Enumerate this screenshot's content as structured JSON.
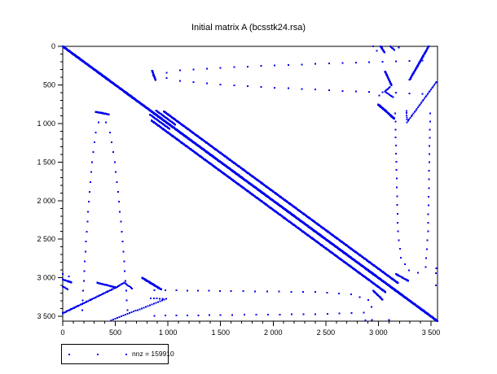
{
  "title": "Initial matrix A (bcsstk24.rsa)",
  "legend": {
    "label": "nnz = 159910"
  },
  "chart_data": {
    "type": "scatter",
    "subtype": "spy-sparsity-plot",
    "title": "Initial matrix A (bcsstk24.rsa)",
    "matrix": "bcsstk24.rsa",
    "n": 3562,
    "nnz": 159910,
    "axis_range": [
      0,
      3562
    ],
    "x_ticks": [
      0,
      500,
      1000,
      1500,
      2000,
      2500,
      3000,
      3500
    ],
    "x_tick_labels": [
      "0",
      "500",
      "1 000",
      "1 500",
      "2 000",
      "2 500",
      "3 000",
      "3 500"
    ],
    "y_ticks": [
      0,
      500,
      1000,
      1500,
      2000,
      2500,
      3000,
      3500
    ],
    "y_tick_labels": [
      "0",
      "500",
      "1 000",
      "1 500",
      "2 000",
      "2 500",
      "3 000",
      "3 500"
    ],
    "minor_tick_step": 100,
    "grid": false,
    "legend_position": "bottom-left-outside",
    "marker_color": "#0000ee",
    "axis_color": "#000000",
    "features": [
      {
        "name": "main-diagonal",
        "poly": [
          [
            0,
            0
          ],
          [
            3562,
            3562
          ]
        ],
        "step": 5,
        "size": 2.4,
        "mirror": false
      },
      {
        "name": "off-diagonal-band",
        "poly": [
          [
            962,
            844
          ],
          [
            3185,
            3067
          ]
        ],
        "step": 6,
        "size": 2.2,
        "mirror": true
      },
      {
        "name": "band-fan-inner",
        "poly": [
          [
            885,
            830
          ],
          [
            1070,
            1015
          ]
        ],
        "step": 6,
        "size": 2,
        "mirror": true
      },
      {
        "name": "arc-upper-branch",
        "poly": [
          [
            372,
            858
          ],
          [
            313,
            1115
          ],
          [
            279,
            1500
          ],
          [
            247,
            2015
          ],
          [
            216,
            2660
          ],
          [
            185,
            3420
          ]
        ],
        "step": 118,
        "size": 2,
        "mirror": true
      },
      {
        "name": "arc-lower-branch",
        "poly": [
          [
            372,
            858
          ],
          [
            449,
            1115
          ],
          [
            494,
            1500
          ],
          [
            535,
            2015
          ],
          [
            577,
            2660
          ],
          [
            616,
            3420
          ]
        ],
        "step": 118,
        "size": 2,
        "mirror": true
      },
      {
        "name": "arc-vertex-streak",
        "poly": [
          [
            315,
            850
          ],
          [
            438,
            882
          ]
        ],
        "step": 7,
        "size": 2.2,
        "mirror": true
      },
      {
        "name": "right-loop",
        "poly": [
          [
            870,
            3160
          ],
          [
            1600,
            3172
          ],
          [
            2400,
            3185
          ],
          [
            2740,
            3215
          ],
          [
            2905,
            3290
          ],
          [
            2935,
            3375
          ],
          [
            2860,
            3450
          ],
          [
            2400,
            3472
          ],
          [
            1500,
            3483
          ],
          [
            870,
            3492
          ]
        ],
        "step": 112,
        "size": 2,
        "mirror": true
      },
      {
        "name": "junction-streak",
        "poly": [
          [
            3000,
            755
          ],
          [
            3150,
            935
          ]
        ],
        "step": 7,
        "size": 2.4,
        "mirror": true
      },
      {
        "name": "corner-line-bl",
        "poly": [
          [
            3460,
            0
          ],
          [
            3110,
            530
          ]
        ],
        "step": 16,
        "size": 2.2,
        "mirror": false
      },
      {
        "name": "corner-line-tr",
        "poly": [
          [
            0,
            3478
          ],
          [
            432,
            3298
          ]
        ],
        "step": 14,
        "size": 2.4,
        "mirror": false
      },
      {
        "name": "corner-cap",
        "poly": [
          [
            3108,
            528
          ],
          [
            3062,
            585
          ],
          [
            3140,
            660
          ]
        ],
        "step": 13,
        "size": 2,
        "mirror": true
      },
      {
        "name": "corner-line-2",
        "poly": [
          [
            3552,
            462
          ],
          [
            3272,
            985
          ]
        ],
        "step": 22,
        "size": 2,
        "mirror": true
      },
      {
        "name": "edge-cap",
        "poly": [
          [
            3022,
            0
          ],
          [
            3058,
            80
          ]
        ],
        "step": 9,
        "size": 2.2,
        "mirror": true
      },
      {
        "name": "edge-stub",
        "poly": [
          [
            3112,
            0
          ],
          [
            3150,
            48
          ]
        ],
        "step": 12,
        "size": 2,
        "mirror": true
      },
      {
        "name": "short-row",
        "poly": [
          [
            3266,
            838
          ],
          [
            3272,
            950
          ]
        ],
        "step": 28,
        "size": 2,
        "mirror": true
      },
      {
        "name": "off-band-end",
        "poly": [
          [
            2952,
            3168
          ],
          [
            3038,
            3282
          ]
        ],
        "step": 10,
        "size": 2.2,
        "mirror": true
      },
      {
        "name": "corner-streak",
        "poly": [
          [
            330,
            3065
          ],
          [
            505,
            3125
          ]
        ],
        "step": 9,
        "size": 2.2,
        "mirror": true
      },
      {
        "name": "scatter-dots",
        "points": [
          [
            2950,
            0
          ],
          [
            0,
            2950
          ],
          [
            60,
            2985
          ],
          [
            2985,
            60
          ],
          [
            15,
            3195
          ],
          [
            640,
            3008
          ],
          [
            2940,
            3545
          ],
          [
            3100,
            3548
          ],
          [
            3545,
            2940
          ],
          [
            3548,
            3100
          ],
          [
            2877,
            3552
          ],
          [
            3552,
            2877
          ]
        ],
        "size": 2,
        "mirror": false
      }
    ]
  }
}
